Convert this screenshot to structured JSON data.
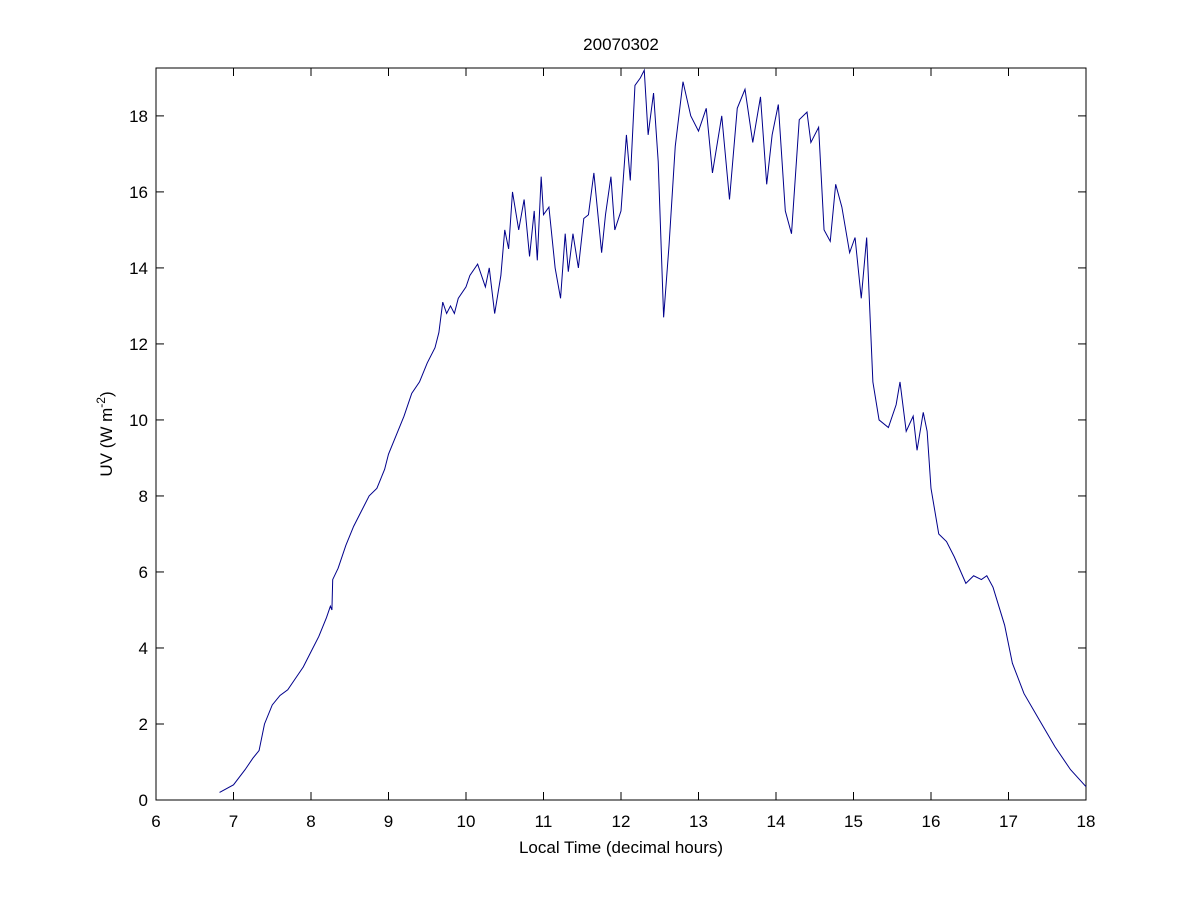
{
  "chart_data": {
    "type": "line",
    "title": "20070302",
    "xlabel": "Local Time (decimal hours)",
    "ylabel": {
      "text": "UV (W m",
      "sup": "-2",
      "end": ")"
    },
    "xlim": [
      6,
      18
    ],
    "ylim": [
      0,
      19.26
    ],
    "xticks": [
      6,
      7,
      8,
      9,
      10,
      11,
      12,
      13,
      14,
      15,
      16,
      17,
      18
    ],
    "yticks": [
      0,
      2,
      4,
      6,
      8,
      10,
      12,
      14,
      16,
      18
    ],
    "grid": false,
    "series": [
      {
        "color": "#00008b",
        "x": [
          6.82,
          7.0,
          7.15,
          7.25,
          7.33,
          7.4,
          7.5,
          7.6,
          7.7,
          7.8,
          7.9,
          8.0,
          8.1,
          8.2,
          8.25,
          8.27,
          8.28,
          8.35,
          8.45,
          8.55,
          8.65,
          8.75,
          8.85,
          8.95,
          9.0,
          9.1,
          9.2,
          9.3,
          9.4,
          9.5,
          9.6,
          9.65,
          9.7,
          9.75,
          9.8,
          9.85,
          9.9,
          10.0,
          10.05,
          10.15,
          10.25,
          10.3,
          10.37,
          10.45,
          10.5,
          10.55,
          10.6,
          10.68,
          10.75,
          10.82,
          10.88,
          10.92,
          10.97,
          11.0,
          11.07,
          11.15,
          11.22,
          11.28,
          11.32,
          11.38,
          11.45,
          11.52,
          11.58,
          11.65,
          11.75,
          11.8,
          11.87,
          11.92,
          12.0,
          12.07,
          12.12,
          12.18,
          12.25,
          12.3,
          12.35,
          12.42,
          12.48,
          12.55,
          12.62,
          12.7,
          12.8,
          12.9,
          13.0,
          13.1,
          13.18,
          13.3,
          13.4,
          13.5,
          13.6,
          13.7,
          13.8,
          13.88,
          13.95,
          14.03,
          14.12,
          14.2,
          14.3,
          14.4,
          14.45,
          14.55,
          14.62,
          14.7,
          14.77,
          14.85,
          14.95,
          15.02,
          15.1,
          15.17,
          15.25,
          15.33,
          15.45,
          15.55,
          15.6,
          15.68,
          15.77,
          15.82,
          15.9,
          15.95,
          16.0,
          16.1,
          16.2,
          16.3,
          16.45,
          16.55,
          16.65,
          16.72,
          16.8,
          16.95,
          17.05,
          17.2,
          17.4,
          17.6,
          17.8,
          18.0
        ],
        "values": [
          0.2,
          0.4,
          0.8,
          1.1,
          1.3,
          2.0,
          2.5,
          2.75,
          2.9,
          3.2,
          3.5,
          3.9,
          4.3,
          4.8,
          5.1,
          5.0,
          5.8,
          6.1,
          6.7,
          7.2,
          7.6,
          8.0,
          8.2,
          8.7,
          9.1,
          9.6,
          10.1,
          10.7,
          11.0,
          11.5,
          11.9,
          12.3,
          13.1,
          12.8,
          13.0,
          12.8,
          13.2,
          13.5,
          13.8,
          14.1,
          13.5,
          14.0,
          12.8,
          13.8,
          15.0,
          14.5,
          16.0,
          15.0,
          15.8,
          14.3,
          15.5,
          14.2,
          16.4,
          15.4,
          15.6,
          14.0,
          13.2,
          14.9,
          13.9,
          14.9,
          14.0,
          15.3,
          15.4,
          16.5,
          14.4,
          15.4,
          16.4,
          15.0,
          15.5,
          17.5,
          16.3,
          18.8,
          19.0,
          19.2,
          17.5,
          18.6,
          16.8,
          12.7,
          14.6,
          17.2,
          18.9,
          18.0,
          17.6,
          18.2,
          16.5,
          18.0,
          15.8,
          18.2,
          18.7,
          17.3,
          18.5,
          16.2,
          17.5,
          18.3,
          15.5,
          14.9,
          17.9,
          18.1,
          17.3,
          17.7,
          15.0,
          14.7,
          16.2,
          15.6,
          14.4,
          14.8,
          13.2,
          14.8,
          11.0,
          10.0,
          9.8,
          10.4,
          11.0,
          9.7,
          10.1,
          9.2,
          10.2,
          9.7,
          8.2,
          7.0,
          6.8,
          6.4,
          5.7,
          5.9,
          5.8,
          5.9,
          5.6,
          4.6,
          3.6,
          2.8,
          2.1,
          1.4,
          0.8,
          0.35
        ]
      }
    ]
  }
}
